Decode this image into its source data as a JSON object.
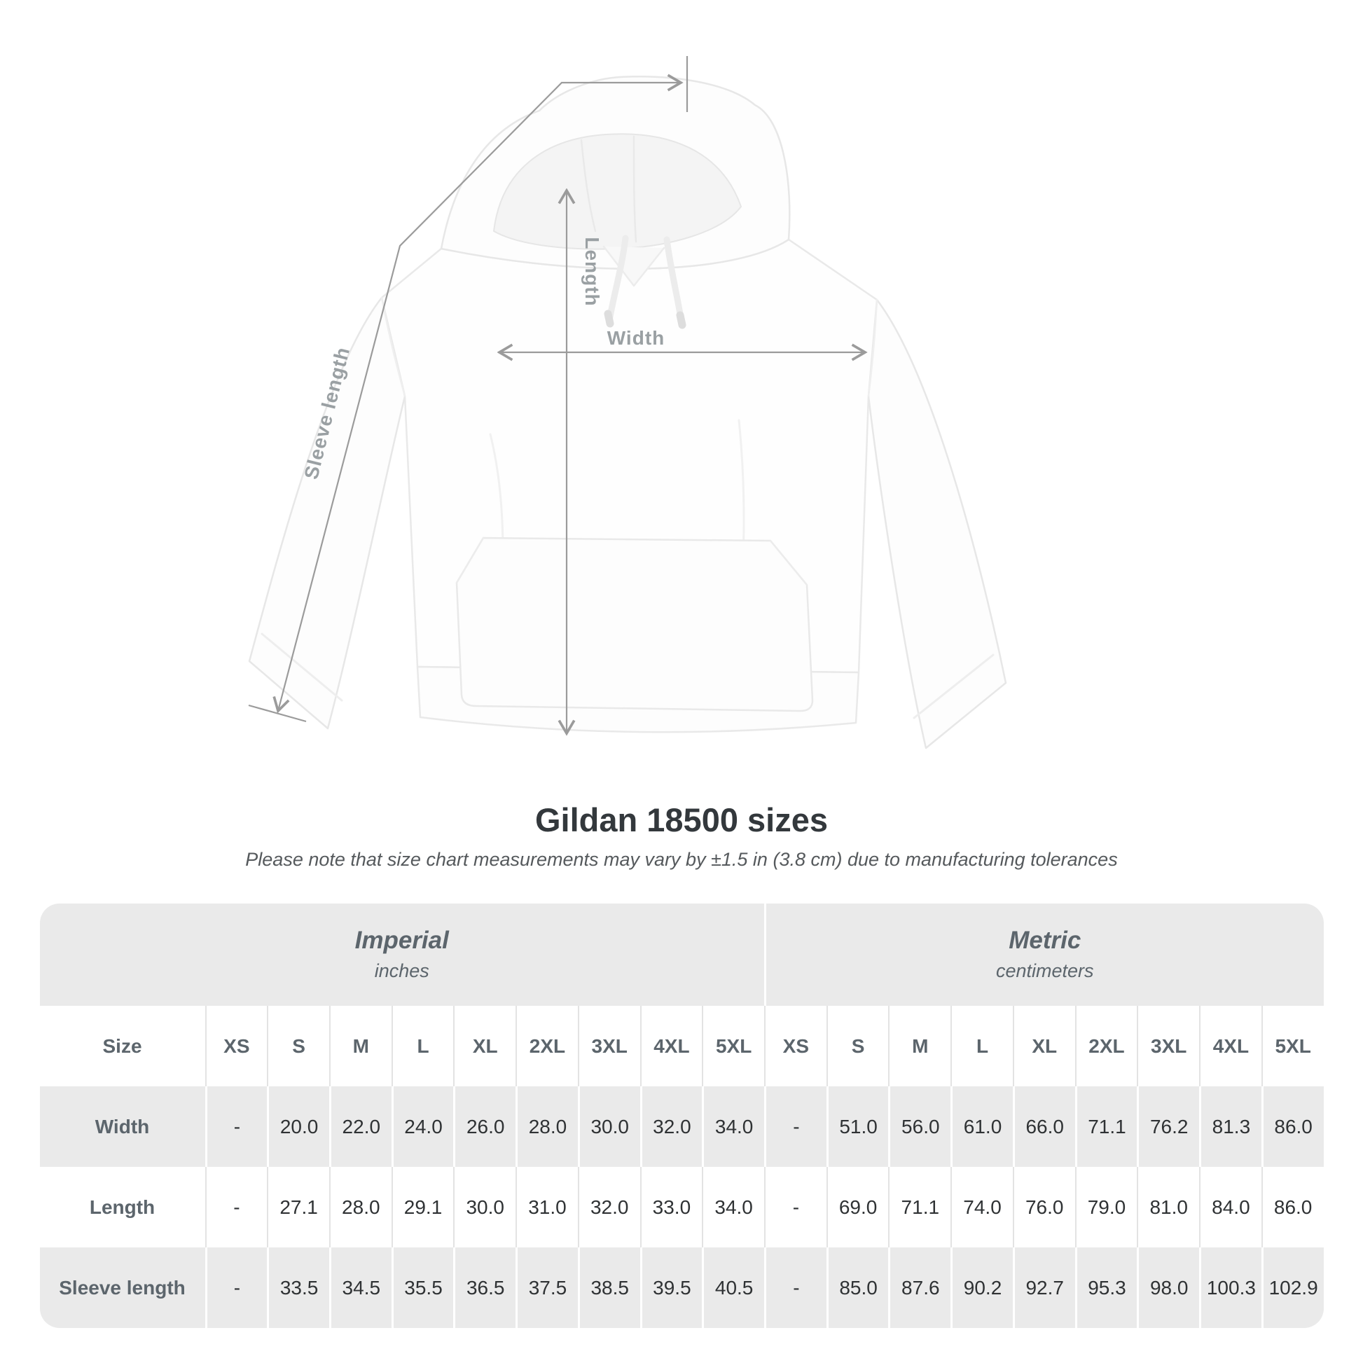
{
  "diagram": {
    "sleeve_label": "Sleeve length",
    "length_label": "Length",
    "width_label": "Width"
  },
  "header": {
    "title": "Gildan 18500 sizes",
    "subtitle": "Please note that size chart measurements may vary by ±1.5 in (3.8 cm) due to manufacturing tolerances"
  },
  "chart_data": {
    "type": "table",
    "title": "Gildan 18500 sizes",
    "note": "Please note that size chart measurements may vary by ±1.5 in (3.8 cm) due to manufacturing tolerances",
    "size_column_header": "Size",
    "unit_groups": [
      {
        "name": "Imperial",
        "unit": "inches"
      },
      {
        "name": "Metric",
        "unit": "centimeters"
      }
    ],
    "sizes": [
      "XS",
      "S",
      "M",
      "L",
      "XL",
      "2XL",
      "3XL",
      "4XL",
      "5XL"
    ],
    "rows": [
      {
        "label": "Width",
        "imperial": [
          "-",
          "20.0",
          "22.0",
          "24.0",
          "26.0",
          "28.0",
          "30.0",
          "32.0",
          "34.0"
        ],
        "metric": [
          "-",
          "51.0",
          "56.0",
          "61.0",
          "66.0",
          "71.1",
          "76.2",
          "81.3",
          "86.0"
        ]
      },
      {
        "label": "Length",
        "imperial": [
          "-",
          "27.1",
          "28.0",
          "29.1",
          "30.0",
          "31.0",
          "32.0",
          "33.0",
          "34.0"
        ],
        "metric": [
          "-",
          "69.0",
          "71.1",
          "74.0",
          "76.0",
          "79.0",
          "81.0",
          "84.0",
          "86.0"
        ]
      },
      {
        "label": "Sleeve length",
        "imperial": [
          "-",
          "33.5",
          "34.5",
          "35.5",
          "36.5",
          "37.5",
          "38.5",
          "39.5",
          "40.5"
        ],
        "metric": [
          "-",
          "85.0",
          "87.6",
          "90.2",
          "92.7",
          "95.3",
          "98.0",
          "100.3",
          "102.9"
        ]
      }
    ]
  }
}
